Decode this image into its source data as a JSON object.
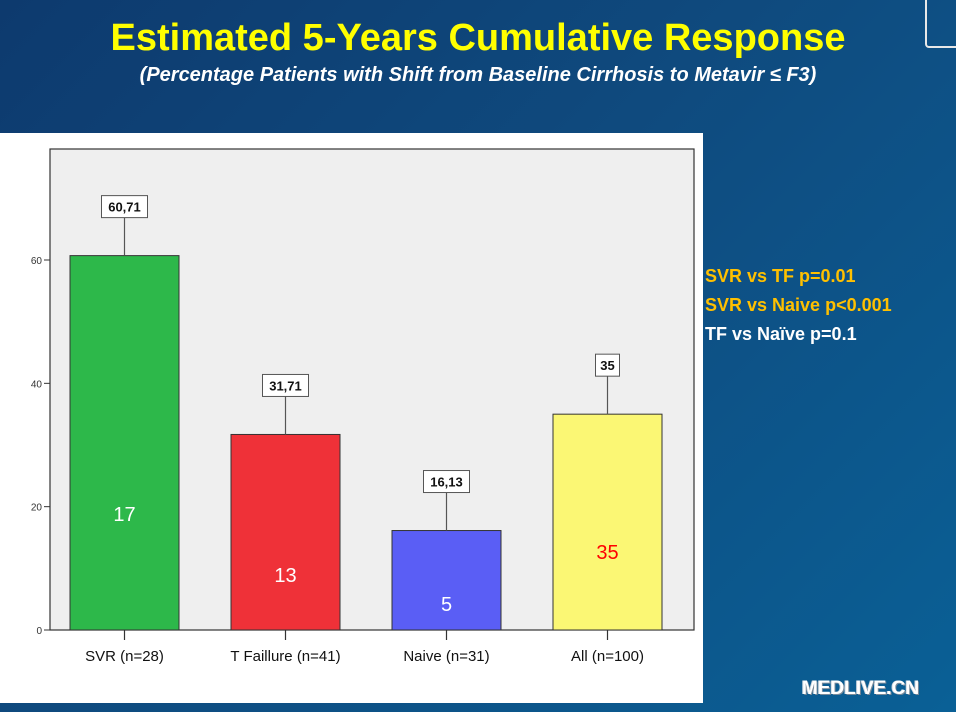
{
  "slide": {
    "title": "Estimated 5-Years Cumulative Response",
    "subtitle": "(Percentage Patients with Shift from Baseline Cirrhosis to Metavir ≤ F3)",
    "p_values": [
      {
        "text": "SVR vs TF p=0.01",
        "color": "#ffc000"
      },
      {
        "text": "SVR vs Naive p<0.001",
        "color": "#ffc000"
      },
      {
        "text": "TF vs Naïve p=0.1",
        "color": "#ffffff"
      }
    ],
    "logo": "MEDLIVE.CN"
  },
  "chart_data": {
    "type": "bar",
    "title": "",
    "xlabel": "",
    "ylabel": "",
    "categories": [
      "SVR (n=28)",
      "T Faillure (n=41)",
      "Naive (n=31)",
      "All (n=100)"
    ],
    "values": [
      60.71,
      31.71,
      16.13,
      35
    ],
    "value_labels": [
      "60,71",
      "31,71",
      "16,13",
      "35"
    ],
    "count_labels": [
      "17",
      "13",
      "5",
      "35"
    ],
    "count_label_colors": [
      "#ffffff",
      "#ffffff",
      "#ffffff",
      "#ff0000"
    ],
    "bar_colors": [
      "#2db84a",
      "#ef3138",
      "#5a5ef5",
      "#fbf774"
    ],
    "yticks": [
      0,
      20,
      40,
      60
    ],
    "ytick_labels": [
      "0",
      "20",
      "40",
      "60"
    ],
    "ylim": [
      0,
      78
    ],
    "grid": false,
    "legend": "none"
  }
}
